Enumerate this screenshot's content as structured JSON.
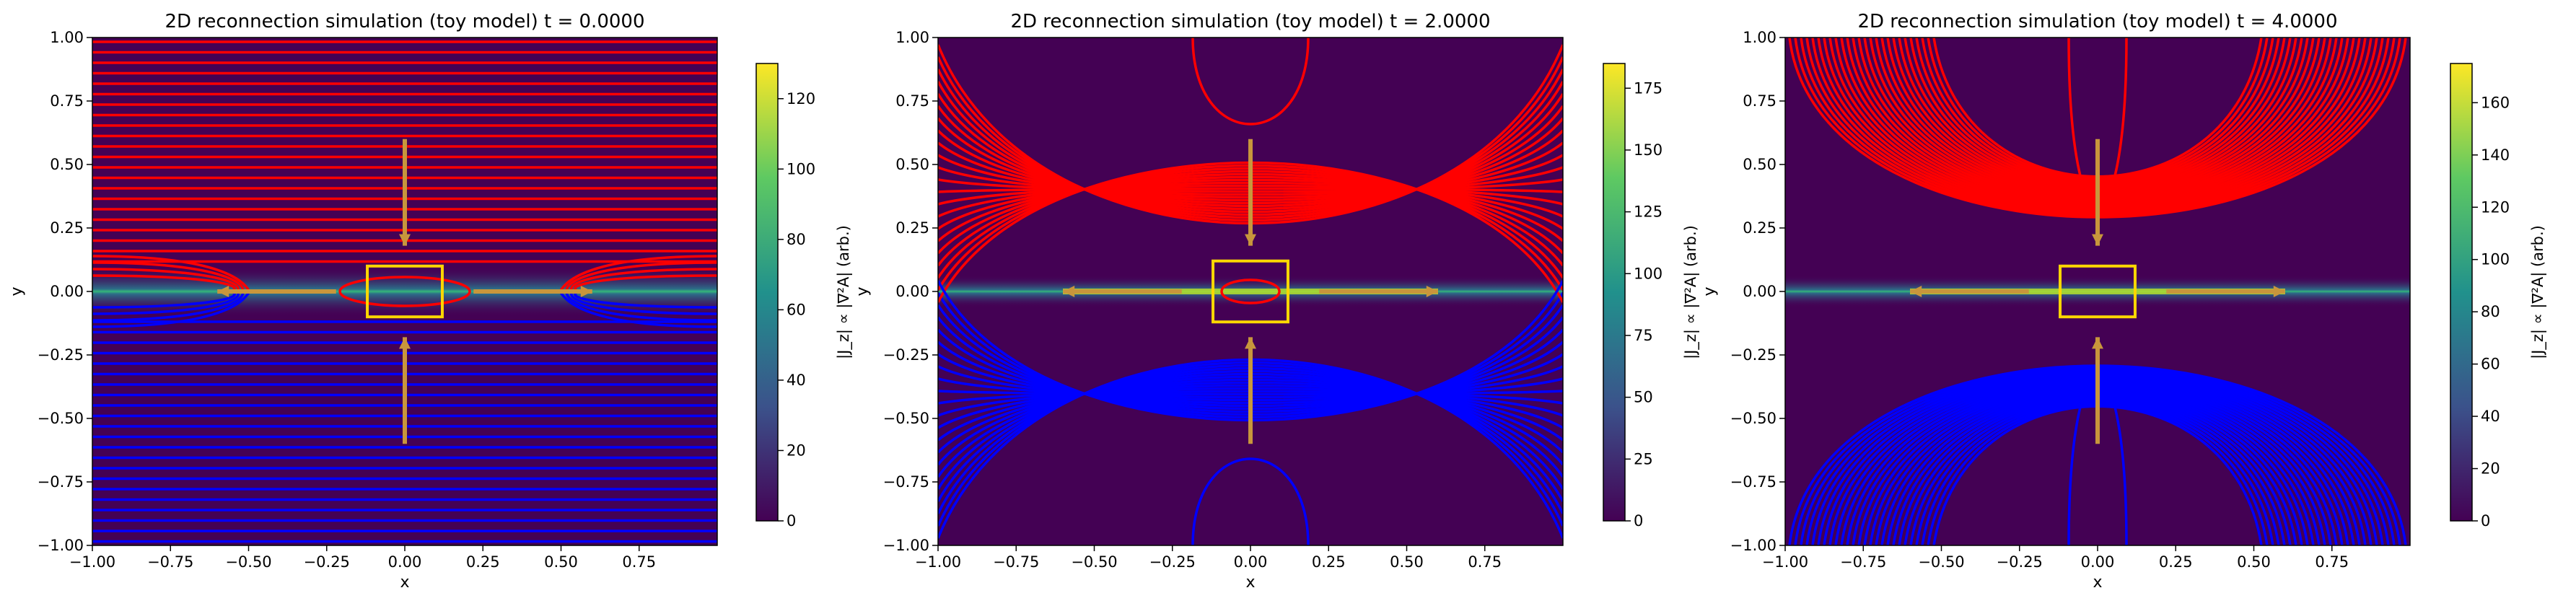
{
  "figure": {
    "panels": [
      {
        "title": "2D reconnection simulation (toy model)   t = 0.0000"
      },
      {
        "title": "2D reconnection simulation (toy model)   t = 2.0000"
      },
      {
        "title": "2D reconnection simulation (toy model)   t = 4.0000"
      }
    ]
  },
  "chart_data": [
    {
      "type": "heatmap",
      "title": "2D reconnection simulation (toy model)   t = 0.0000",
      "time": 0.0,
      "xlabel": "x",
      "ylabel": "y",
      "xlim": [
        -1.0,
        1.0
      ],
      "ylim": [
        -1.0,
        1.0
      ],
      "x_ticks": [
        "−1.00",
        "−0.75",
        "−0.50",
        "−0.25",
        "0.00",
        "0.25",
        "0.50",
        "0.75"
      ],
      "y_ticks": [
        "−1.00",
        "−0.75",
        "−0.50",
        "−0.25",
        "0.00",
        "0.25",
        "0.50",
        "0.75",
        "1.00"
      ],
      "colorbar": {
        "label": "|J_z| ∝ |∇²A| (arb.)",
        "range": [
          0,
          130
        ],
        "ticks": [
          "0",
          "20",
          "40",
          "60",
          "80",
          "100",
          "120"
        ],
        "colormap": "viridis"
      },
      "field_lines": {
        "upper_color": "#ff0000",
        "lower_color": "#0000ff"
      },
      "box": {
        "x": [
          -0.12,
          0.12
        ],
        "y": [
          -0.1,
          0.1
        ],
        "color": "#ffd700"
      },
      "flow_arrows": {
        "color": "#c8963c",
        "inflow": [
          [
            0,
            0.6,
            0,
            0.18
          ],
          [
            0,
            -0.6,
            0,
            -0.18
          ]
        ],
        "outflow": [
          [
            -0.22,
            0,
            -0.6,
            0
          ],
          [
            0.22,
            0,
            0.6,
            0
          ]
        ]
      }
    },
    {
      "type": "heatmap",
      "title": "2D reconnection simulation (toy model)   t = 2.0000",
      "time": 2.0,
      "xlabel": "x",
      "ylabel": "y",
      "xlim": [
        -1.0,
        1.0
      ],
      "ylim": [
        -1.0,
        1.0
      ],
      "x_ticks": [
        "−1.00",
        "−0.75",
        "−0.50",
        "−0.25",
        "0.00",
        "0.25",
        "0.50",
        "0.75"
      ],
      "y_ticks": [
        "−1.00",
        "−0.75",
        "−0.50",
        "−0.25",
        "0.00",
        "0.25",
        "0.50",
        "0.75",
        "1.00"
      ],
      "colorbar": {
        "label": "|J_z| ∝ |∇²A| (arb.)",
        "range": [
          0,
          185
        ],
        "ticks": [
          "0",
          "25",
          "50",
          "75",
          "100",
          "125",
          "150",
          "175"
        ],
        "colormap": "viridis"
      },
      "field_lines": {
        "upper_color": "#ff0000",
        "lower_color": "#0000ff"
      },
      "box": {
        "x": [
          -0.12,
          0.12
        ],
        "y": [
          -0.12,
          0.12
        ],
        "color": "#ffd700"
      },
      "flow_arrows": {
        "color": "#c8963c",
        "inflow": [
          [
            0,
            0.6,
            0,
            0.18
          ],
          [
            0,
            -0.6,
            0,
            -0.18
          ]
        ],
        "outflow": [
          [
            -0.22,
            0,
            -0.6,
            0
          ],
          [
            0.22,
            0,
            0.6,
            0
          ]
        ]
      }
    },
    {
      "type": "heatmap",
      "title": "2D reconnection simulation (toy model)   t = 4.0000",
      "time": 4.0,
      "xlabel": "x",
      "ylabel": "y",
      "xlim": [
        -1.0,
        1.0
      ],
      "ylim": [
        -1.0,
        1.0
      ],
      "x_ticks": [
        "−1.00",
        "−0.75",
        "−0.50",
        "−0.25",
        "0.00",
        "0.25",
        "0.50",
        "0.75"
      ],
      "y_ticks": [
        "−1.00",
        "−0.75",
        "−0.50",
        "−0.25",
        "0.00",
        "0.25",
        "0.50",
        "0.75",
        "1.00"
      ],
      "colorbar": {
        "label": "|J_z| ∝ |∇²A| (arb.)",
        "range": [
          0,
          175
        ],
        "ticks": [
          "0",
          "20",
          "40",
          "60",
          "80",
          "100",
          "120",
          "140",
          "160"
        ],
        "colormap": "viridis"
      },
      "field_lines": {
        "upper_color": "#ff0000",
        "lower_color": "#0000ff"
      },
      "box": {
        "x": [
          -0.12,
          0.12
        ],
        "y": [
          -0.1,
          0.1
        ],
        "color": "#ffd700"
      },
      "flow_arrows": {
        "color": "#c8963c",
        "inflow": [
          [
            0,
            0.6,
            0,
            0.18
          ],
          [
            0,
            -0.6,
            0,
            -0.18
          ]
        ],
        "outflow": [
          [
            -0.22,
            0,
            -0.6,
            0
          ],
          [
            0.22,
            0,
            0.6,
            0
          ]
        ]
      }
    }
  ]
}
